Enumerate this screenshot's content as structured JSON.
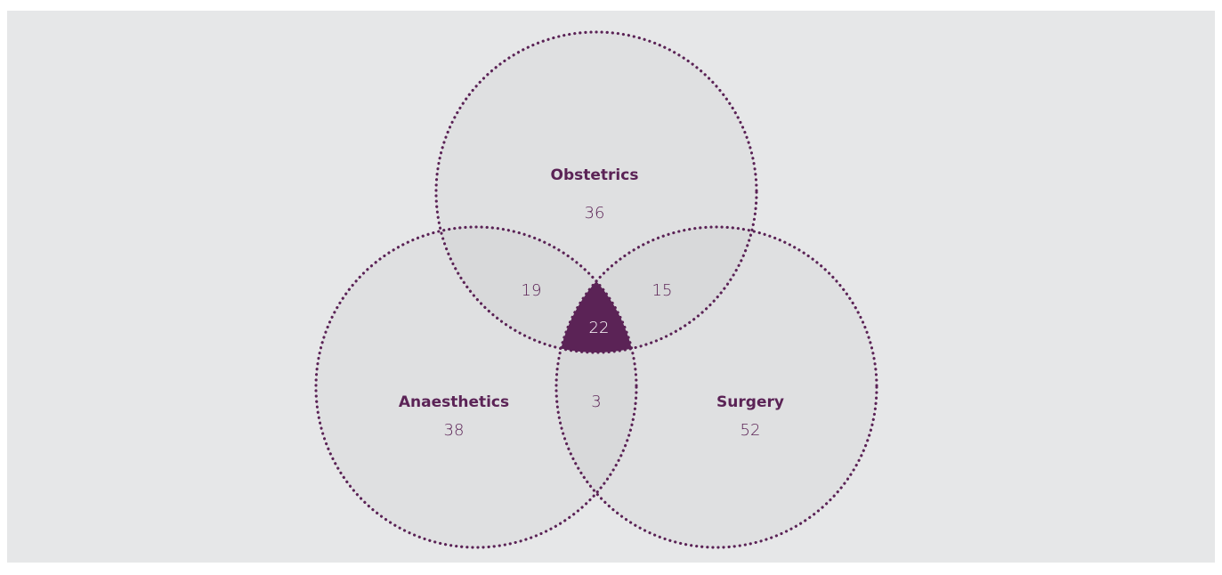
{
  "sets": [
    {
      "label": "Obstetrics",
      "count": 36
    },
    {
      "label": "Anaesthetics",
      "count": 38
    },
    {
      "label": "Surgery",
      "count": 52
    }
  ],
  "intersections": [
    {
      "count": 19
    },
    {
      "count": 15
    },
    {
      "count": 3
    },
    {
      "count": 22
    }
  ]
}
